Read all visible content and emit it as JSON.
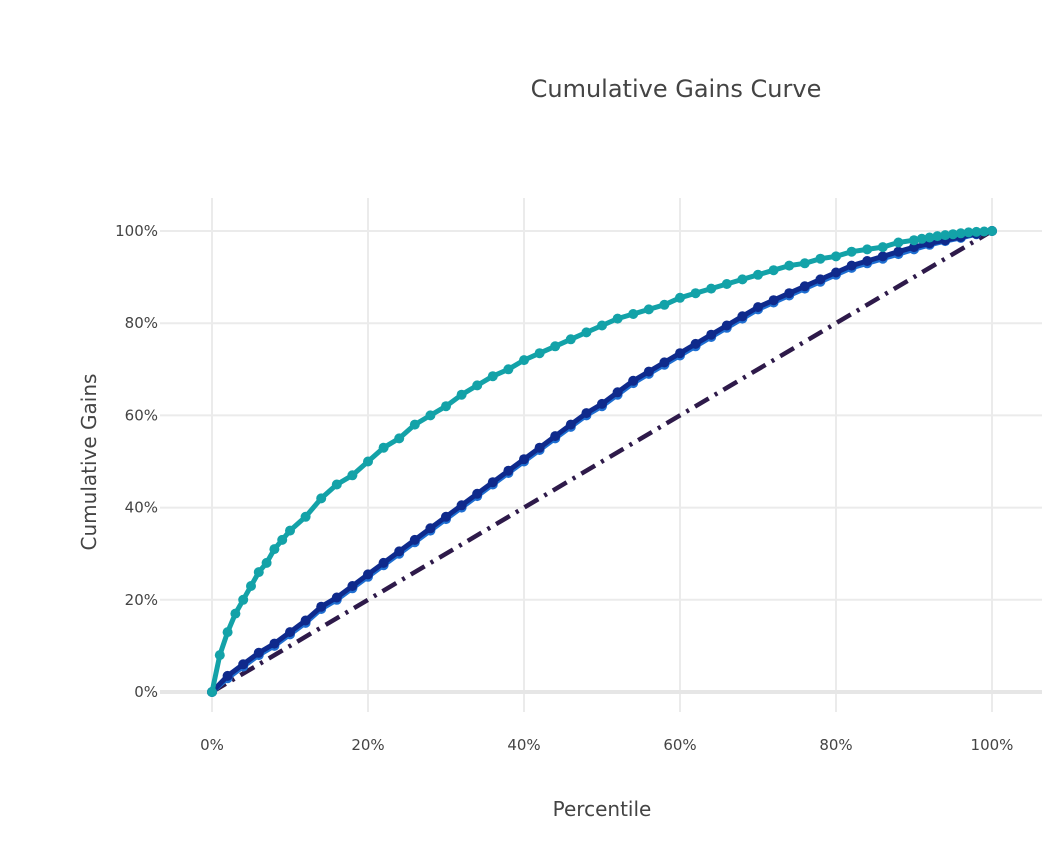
{
  "chart_data": {
    "type": "line",
    "title": "Cumulative Gains Curve",
    "xlabel": "Percentile",
    "ylabel": "Cumulative Gains",
    "xlim": [
      0,
      1
    ],
    "ylim": [
      0,
      1
    ],
    "xticks": [
      "0%",
      "20%",
      "40%",
      "60%",
      "80%",
      "100%"
    ],
    "yticks": [
      "0%",
      "20%",
      "40%",
      "60%",
      "80%",
      "100%"
    ],
    "grid": true,
    "legend": "none",
    "series": [
      {
        "color": "#13a2a8",
        "line_style": "solid",
        "markers": true,
        "x": [
          0,
          0.01,
          0.02,
          0.03,
          0.04,
          0.05,
          0.06,
          0.07,
          0.08,
          0.09,
          0.1,
          0.12,
          0.14,
          0.16,
          0.18,
          0.2,
          0.22,
          0.24,
          0.26,
          0.28,
          0.3,
          0.32,
          0.34,
          0.36,
          0.38,
          0.4,
          0.42,
          0.44,
          0.46,
          0.48,
          0.5,
          0.52,
          0.54,
          0.56,
          0.58,
          0.6,
          0.62,
          0.64,
          0.66,
          0.68,
          0.7,
          0.72,
          0.74,
          0.76,
          0.78,
          0.8,
          0.82,
          0.84,
          0.86,
          0.88,
          0.9,
          0.91,
          0.92,
          0.93,
          0.94,
          0.95,
          0.96,
          0.97,
          0.98,
          0.99,
          1.0
        ],
        "y": [
          0,
          0.08,
          0.13,
          0.17,
          0.2,
          0.23,
          0.26,
          0.28,
          0.31,
          0.33,
          0.35,
          0.38,
          0.42,
          0.45,
          0.47,
          0.5,
          0.53,
          0.55,
          0.58,
          0.6,
          0.62,
          0.645,
          0.665,
          0.685,
          0.7,
          0.72,
          0.735,
          0.75,
          0.765,
          0.78,
          0.795,
          0.81,
          0.82,
          0.83,
          0.84,
          0.855,
          0.865,
          0.875,
          0.885,
          0.895,
          0.905,
          0.915,
          0.925,
          0.93,
          0.94,
          0.945,
          0.955,
          0.96,
          0.965,
          0.975,
          0.98,
          0.983,
          0.986,
          0.989,
          0.991,
          0.993,
          0.995,
          0.997,
          0.998,
          0.999,
          1.0
        ]
      },
      {
        "color": "#1f6fd1",
        "line_style": "solid",
        "markers": true,
        "x": [
          0,
          0.02,
          0.04,
          0.06,
          0.08,
          0.1,
          0.12,
          0.14,
          0.16,
          0.18,
          0.2,
          0.22,
          0.24,
          0.26,
          0.28,
          0.3,
          0.32,
          0.34,
          0.36,
          0.38,
          0.4,
          0.42,
          0.44,
          0.46,
          0.48,
          0.5,
          0.52,
          0.54,
          0.56,
          0.58,
          0.6,
          0.62,
          0.64,
          0.66,
          0.68,
          0.7,
          0.72,
          0.74,
          0.76,
          0.78,
          0.8,
          0.82,
          0.84,
          0.86,
          0.88,
          0.9,
          0.92,
          0.94,
          0.96,
          0.98,
          1.0
        ],
        "y": [
          0,
          0.03,
          0.055,
          0.08,
          0.1,
          0.125,
          0.15,
          0.18,
          0.2,
          0.225,
          0.25,
          0.275,
          0.3,
          0.325,
          0.35,
          0.375,
          0.4,
          0.425,
          0.45,
          0.475,
          0.5,
          0.525,
          0.55,
          0.575,
          0.6,
          0.62,
          0.645,
          0.67,
          0.69,
          0.71,
          0.73,
          0.75,
          0.77,
          0.79,
          0.81,
          0.83,
          0.845,
          0.86,
          0.875,
          0.89,
          0.905,
          0.92,
          0.93,
          0.94,
          0.95,
          0.96,
          0.97,
          0.978,
          0.985,
          0.993,
          1.0
        ]
      },
      {
        "color": "#0f2a8c",
        "line_style": "solid",
        "markers": true,
        "x": [
          0,
          0.02,
          0.04,
          0.06,
          0.08,
          0.1,
          0.12,
          0.14,
          0.16,
          0.18,
          0.2,
          0.22,
          0.24,
          0.26,
          0.28,
          0.3,
          0.32,
          0.34,
          0.36,
          0.38,
          0.4,
          0.42,
          0.44,
          0.46,
          0.48,
          0.5,
          0.52,
          0.54,
          0.56,
          0.58,
          0.6,
          0.62,
          0.64,
          0.66,
          0.68,
          0.7,
          0.72,
          0.74,
          0.76,
          0.78,
          0.8,
          0.82,
          0.84,
          0.86,
          0.88,
          0.9,
          0.92,
          0.94,
          0.96,
          0.98,
          1.0
        ],
        "y": [
          0,
          0.035,
          0.06,
          0.085,
          0.105,
          0.13,
          0.155,
          0.185,
          0.205,
          0.23,
          0.255,
          0.28,
          0.305,
          0.33,
          0.355,
          0.38,
          0.405,
          0.43,
          0.455,
          0.48,
          0.505,
          0.53,
          0.555,
          0.58,
          0.605,
          0.625,
          0.65,
          0.675,
          0.695,
          0.715,
          0.735,
          0.755,
          0.775,
          0.795,
          0.815,
          0.835,
          0.85,
          0.865,
          0.88,
          0.895,
          0.91,
          0.925,
          0.935,
          0.945,
          0.955,
          0.965,
          0.973,
          0.98,
          0.987,
          0.994,
          1.0
        ]
      },
      {
        "color": "#2e1a4a",
        "line_style": "dashdot",
        "markers": false,
        "x": [
          0,
          1
        ],
        "y": [
          0,
          1
        ]
      }
    ]
  }
}
